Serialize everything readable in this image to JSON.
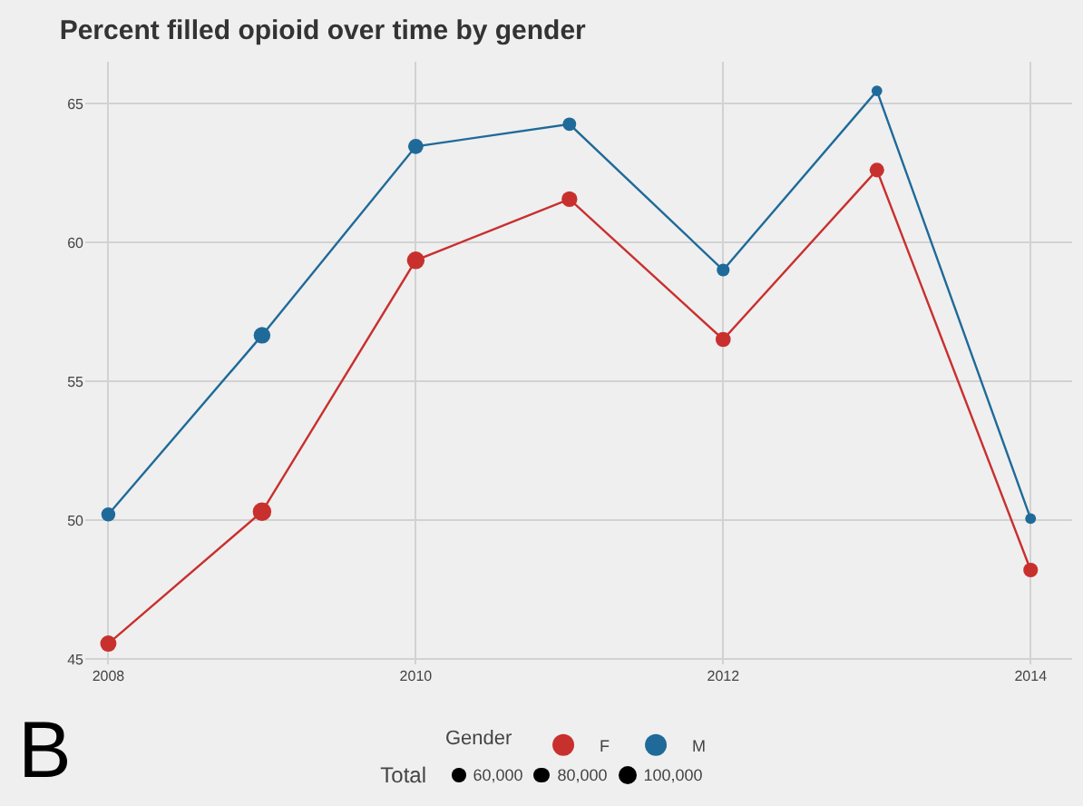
{
  "chart_data": {
    "type": "bubble",
    "title": "Percent filled opioid over time by gender",
    "x": [
      2008,
      2009,
      2010,
      2011,
      2012,
      2013,
      2014
    ],
    "series": [
      {
        "type": "line",
        "marker": "none",
        "color": "#c8302e",
        "values": [
          45.55,
          50.3,
          59.35,
          61.55,
          56.5,
          62.6,
          48.2
        ]
      },
      {
        "type": "line",
        "marker": "none",
        "color": "#1f6a99",
        "values": [
          50.2,
          56.65,
          63.45,
          64.25,
          59.0,
          65.45,
          50.05
        ]
      },
      {
        "name": "F",
        "marker": "circle",
        "color": "#c8302e",
        "values": [
          45.55,
          50.3,
          59.35,
          61.55,
          56.5,
          62.6,
          48.2
        ],
        "sizes": [
          80000,
          105000,
          95000,
          75000,
          70000,
          65000,
          65000
        ]
      },
      {
        "name": "M",
        "marker": "circle",
        "color": "#1f6a99",
        "values": [
          50.2,
          56.65,
          63.45,
          64.25,
          59.0,
          65.45,
          50.05
        ],
        "sizes": [
          60000,
          85000,
          70000,
          55000,
          50000,
          35000,
          35000
        ]
      }
    ],
    "legend_title": "Gender",
    "legend": "bottom",
    "line_style": "solid",
    "grid": true,
    "size_legend": [
      {
        "value": 60000,
        "label": "60,000"
      },
      {
        "value": 80000,
        "label": "80,000"
      },
      {
        "value": 100000,
        "label": "100,000"
      }
    ],
    "xlim": [
      2007.85,
      2014.27
    ],
    "xticks": [
      2008,
      2010,
      2012,
      2014
    ],
    "ylim": [
      44.8,
      66.5
    ],
    "yticks": [
      45,
      50,
      55,
      60,
      65
    ],
    "annotations": [
      "Total",
      "B"
    ]
  }
}
